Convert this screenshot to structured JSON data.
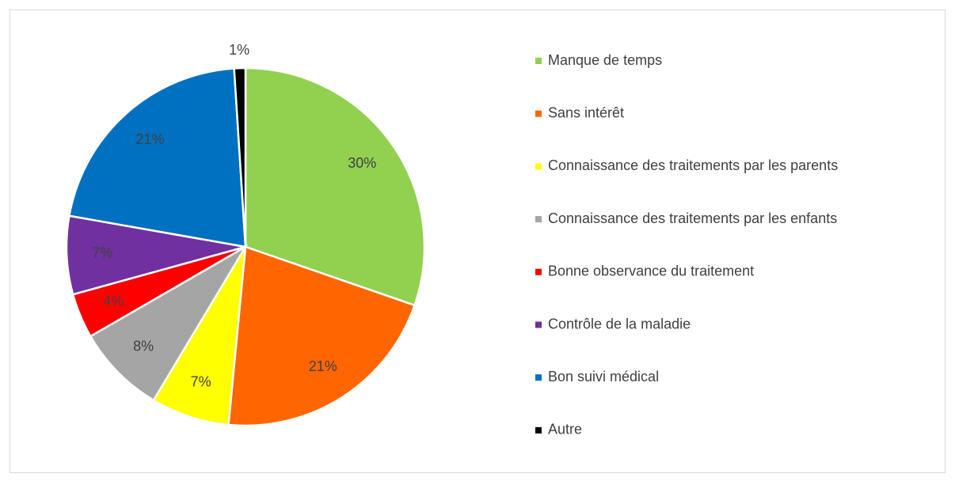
{
  "chart_data": {
    "type": "pie",
    "categories": [
      "Manque de temps",
      "Sans intérêt",
      "Connaissance des traitements par les parents",
      "Connaissance des traitements par les enfants",
      "Bonne observance du traitement",
      "Contrôle de la maladie",
      "Bon suivi médical",
      "Autre"
    ],
    "values": [
      30,
      21,
      7,
      8,
      4,
      7,
      21,
      1
    ],
    "value_labels": [
      "30%",
      "21%",
      "7%",
      "8%",
      "4%",
      "7%",
      "21%",
      "1%"
    ],
    "colors": [
      "#92d050",
      "#ff6600",
      "#ffff00",
      "#a5a5a5",
      "#ff0000",
      "#7030a0",
      "#0070c0",
      "#000000"
    ],
    "legend": "right"
  }
}
